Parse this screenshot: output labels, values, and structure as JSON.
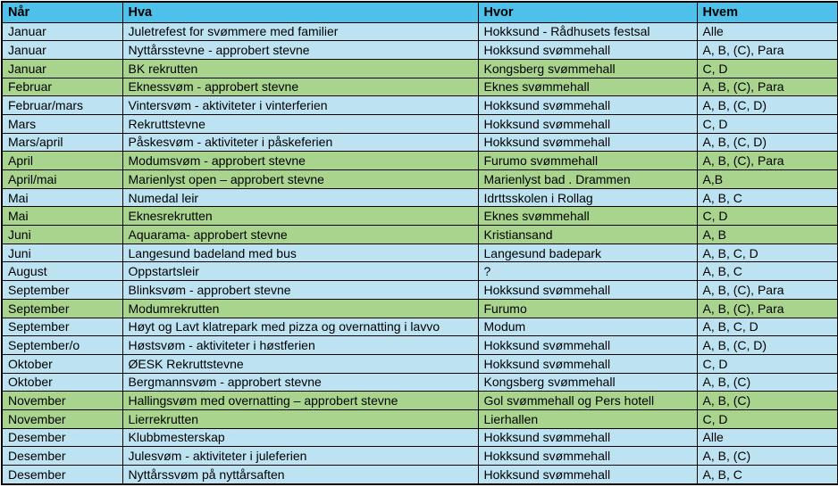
{
  "table": {
    "colors": {
      "header_bg": "#4ec1ea",
      "row_blue": "#bde3f2",
      "row_green": "#a9d48e",
      "border": "#000000",
      "text": "#000000"
    },
    "columns": [
      {
        "key": "nar",
        "label": "Når"
      },
      {
        "key": "hva",
        "label": "Hva"
      },
      {
        "key": "hvor",
        "label": "Hvor"
      },
      {
        "key": "hvem",
        "label": "Hvem"
      }
    ],
    "rows": [
      {
        "nar": "Januar",
        "hva": "Juletrefest for svømmere med familier",
        "hvor": "Hokksund - Rådhusets festsal",
        "hvem": "Alle",
        "tone": "blue"
      },
      {
        "nar": "Januar",
        "hva": "Nyttårsstevne - approbert stevne",
        "hvor": "Hokksund svømmehall",
        "hvem": "A, B, (C), Para",
        "tone": "blue"
      },
      {
        "nar": "Januar",
        "hva": "BK rekrutten",
        "hvor": "Kongsberg svømmehall",
        "hvem": "C, D",
        "tone": "green"
      },
      {
        "nar": "Februar",
        "hva": "Eknessvøm - approbert stevne",
        "hvor": "Eknes svømmehall",
        "hvem": "A, B, (C), Para",
        "tone": "green"
      },
      {
        "nar": "Februar/mars",
        "hva": "Vintersvøm - aktiviteter i vinterferien",
        "hvor": "Hokksund svømmehall",
        "hvem": "A, B, (C, D)",
        "tone": "blue"
      },
      {
        "nar": "Mars",
        "hva": "Rekruttstevne",
        "hvor": "Hokksund svømmehall",
        "hvem": "C, D",
        "tone": "blue"
      },
      {
        "nar": "Mars/april",
        "hva": "Påskesvøm - aktiviteter i påskeferien",
        "hvor": "Hokksund svømmehall",
        "hvem": "A, B, (C, D)",
        "tone": "blue"
      },
      {
        "nar": "April",
        "hva": "Modumsvøm - approbert stevne",
        "hvor": "Furumo svømmehall",
        "hvem": "A, B, (C), Para",
        "tone": "green"
      },
      {
        "nar": "April/mai",
        "hva": "Marienlyst open – approbert stevne",
        "hvor": "Marienlyst bad . Drammen",
        "hvem": "A,B",
        "tone": "green"
      },
      {
        "nar": "Mai",
        "hva": "Numedal leir",
        "hvor": "Idrttsskolen i Rollag",
        "hvem": "A, B, C",
        "tone": "blue"
      },
      {
        "nar": "Mai",
        "hva": "Eknesrekrutten",
        "hvor": "Eknes svømmehall",
        "hvem": "C, D",
        "tone": "green"
      },
      {
        "nar": "Juni",
        "hva": "Aquarama- approbert stevne",
        "hvor": "Kristiansand",
        "hvem": "A, B",
        "tone": "green"
      },
      {
        "nar": "Juni",
        "hva": "Langesund badeland med bus",
        "hvor": "Langesund badepark",
        "hvem": "A, B, C, D",
        "tone": "blue"
      },
      {
        "nar": "August",
        "hva": "Oppstartsleir",
        "hvor": "?",
        "hvem": "A, B, C",
        "tone": "blue"
      },
      {
        "nar": "September",
        "hva": "Blinksvøm - approbert stevne",
        "hvor": "Hokksund svømmehall",
        "hvem": "A, B, (C), Para",
        "tone": "blue"
      },
      {
        "nar": "September",
        "hva": "Modumrekrutten",
        "hvor": "Furumo",
        "hvem": "A, B, (C), Para",
        "tone": "green"
      },
      {
        "nar": "September",
        "hva": "Høyt og Lavt klatrepark med pizza og overnatting i lavvo",
        "hvor": "Modum",
        "hvem": "A, B, C, D",
        "tone": "blue"
      },
      {
        "nar": "September/o",
        "hva": "Høstsvøm - aktiviteter i høstferien",
        "hvor": "Hokksund svømmehall",
        "hvem": "A, B, (C, D)",
        "tone": "blue"
      },
      {
        "nar": "Oktober",
        "hva": "ØESK Rekruttstevne",
        "hvor": "Hokksund svømmehall",
        "hvem": "C, D",
        "tone": "blue"
      },
      {
        "nar": "Oktober",
        "hva": "Bergmannsvøm - approbert stevne",
        "hvor": "Kongsberg svømmehall",
        "hvem": "A, B, (C)",
        "tone": "blue"
      },
      {
        "nar": "November",
        "hva": "Hallingsvøm med overnatting – approbert stevne",
        "hvor": "Gol svømmehall og Pers hotell",
        "hvem": "A, B, (C)",
        "tone": "green"
      },
      {
        "nar": "November",
        "hva": "Lierrekrutten",
        "hvor": "Lierhallen",
        "hvem": "C, D",
        "tone": "green"
      },
      {
        "nar": "Desember",
        "hva": "Klubbmesterskap",
        "hvor": "Hokksund svømmehall",
        "hvem": "Alle",
        "tone": "blue"
      },
      {
        "nar": "Desember",
        "hva": "Julesvøm - aktiviteter i juleferien",
        "hvor": "Hokksund svømmehall",
        "hvem": "A, B, (C)",
        "tone": "blue"
      },
      {
        "nar": "Desember",
        "hva": "Nyttårssvøm på nyttårsaften",
        "hvor": "Hokksund svømmehall",
        "hvem": "A, B, C",
        "tone": "blue"
      }
    ]
  }
}
